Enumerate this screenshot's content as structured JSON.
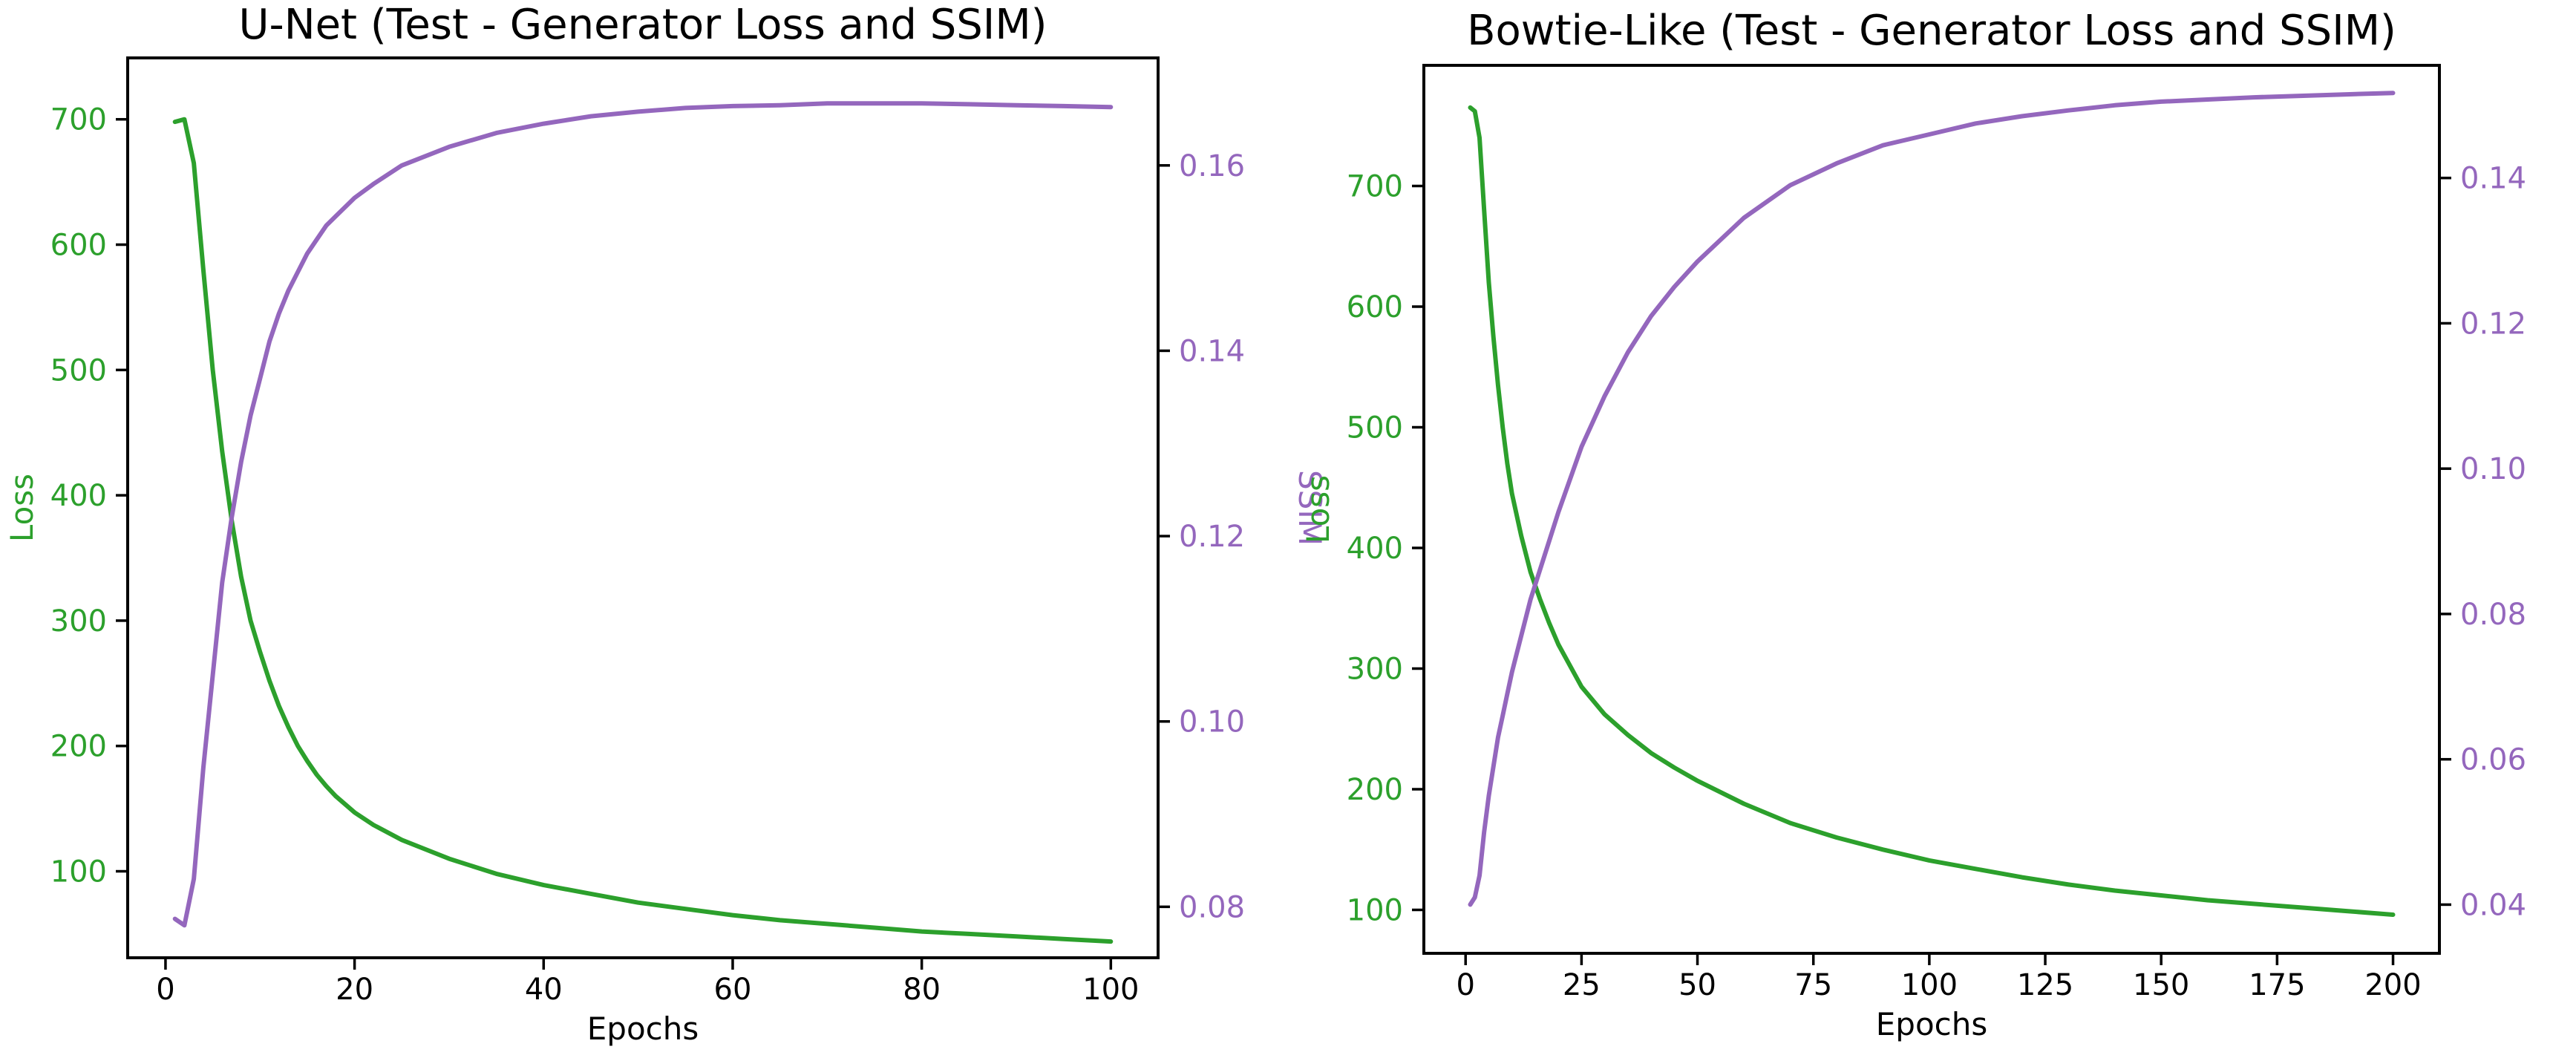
{
  "chart_data": [
    {
      "type": "line",
      "title": "U-Net (Test - Generator Loss and SSIM)",
      "xlabel": "Epochs",
      "ylabel": "Loss",
      "y2label": "SSIM",
      "xlim": [
        -4,
        105
      ],
      "ylim": [
        31,
        749
      ],
      "y2lim": [
        0.0745,
        0.1716
      ],
      "xticks": [
        0,
        20,
        40,
        60,
        80,
        100
      ],
      "yticks": [
        100,
        200,
        300,
        400,
        500,
        600,
        700
      ],
      "y2ticks": [
        0.08,
        0.1,
        0.12,
        0.14,
        0.16
      ],
      "y2tick_labels": [
        "0.08",
        "0.10",
        "0.12",
        "0.14",
        "0.16"
      ],
      "grid": false,
      "series": [
        {
          "axis": "left",
          "color": "#2ca02c",
          "x": [
            1,
            2,
            3,
            4,
            5,
            6,
            7,
            8,
            9,
            10,
            11,
            12,
            13,
            14,
            15,
            16,
            17,
            18,
            20,
            22,
            25,
            30,
            35,
            40,
            45,
            50,
            55,
            60,
            65,
            70,
            75,
            80,
            85,
            90,
            95,
            100
          ],
          "values": [
            698,
            700,
            665,
            580,
            500,
            435,
            380,
            335,
            300,
            275,
            252,
            232,
            215,
            200,
            188,
            177,
            168,
            160,
            147,
            137,
            125,
            110,
            98,
            89,
            82,
            75,
            70,
            65,
            61,
            58,
            55,
            52,
            50,
            48,
            46,
            44
          ]
        },
        {
          "axis": "right",
          "color": "#9467bd",
          "x": [
            1,
            2,
            3,
            4,
            5,
            6,
            7,
            8,
            9,
            10,
            11,
            12,
            13,
            14,
            15,
            16,
            17,
            18,
            20,
            22,
            25,
            30,
            35,
            40,
            45,
            50,
            55,
            60,
            65,
            70,
            75,
            80,
            85,
            90,
            95,
            100
          ],
          "values": [
            0.0787,
            0.078,
            0.083,
            0.095,
            0.105,
            0.115,
            0.122,
            0.128,
            0.133,
            0.137,
            0.141,
            0.144,
            0.1465,
            0.1485,
            0.1505,
            0.152,
            0.1535,
            0.1545,
            0.1565,
            0.158,
            0.16,
            0.162,
            0.1635,
            0.1645,
            0.1653,
            0.1658,
            0.1662,
            0.1664,
            0.1665,
            0.1667,
            0.1667,
            0.1667,
            0.1666,
            0.1665,
            0.1664,
            0.1663
          ]
        }
      ]
    },
    {
      "type": "line",
      "title": "Bowtie-Like (Test - Generator Loss and SSIM)",
      "xlabel": "Epochs",
      "ylabel": "Loss",
      "y2label": "SSIM",
      "xlim": [
        -9,
        210
      ],
      "ylim": [
        64,
        800
      ],
      "y2lim": [
        0.0333,
        0.1555
      ],
      "xticks": [
        0,
        25,
        50,
        75,
        100,
        125,
        150,
        175,
        200
      ],
      "yticks": [
        100,
        200,
        300,
        400,
        500,
        600,
        700
      ],
      "y2ticks": [
        0.04,
        0.06,
        0.08,
        0.1,
        0.12,
        0.14
      ],
      "y2tick_labels": [
        "0.04",
        "0.06",
        "0.08",
        "0.10",
        "0.12",
        "0.14"
      ],
      "grid": false,
      "series": [
        {
          "axis": "left",
          "color": "#2ca02c",
          "x": [
            1,
            2,
            3,
            4,
            5,
            6,
            7,
            8,
            9,
            10,
            12,
            14,
            16,
            18,
            20,
            25,
            30,
            35,
            40,
            45,
            50,
            60,
            70,
            80,
            90,
            100,
            110,
            120,
            130,
            140,
            150,
            160,
            170,
            180,
            190,
            200
          ],
          "values": [
            765,
            762,
            740,
            680,
            620,
            575,
            535,
            500,
            470,
            445,
            410,
            380,
            358,
            338,
            320,
            285,
            262,
            245,
            230,
            218,
            207,
            188,
            172,
            160,
            150,
            141,
            134,
            127,
            121,
            116,
            112,
            108,
            105,
            102,
            99,
            96
          ]
        },
        {
          "axis": "right",
          "color": "#9467bd",
          "x": [
            1,
            2,
            3,
            4,
            5,
            6,
            7,
            8,
            9,
            10,
            12,
            14,
            16,
            18,
            20,
            25,
            30,
            35,
            40,
            45,
            50,
            60,
            70,
            80,
            90,
            100,
            110,
            120,
            130,
            140,
            150,
            160,
            170,
            180,
            190,
            200
          ],
          "values": [
            0.04,
            0.041,
            0.044,
            0.05,
            0.055,
            0.059,
            0.063,
            0.066,
            0.069,
            0.072,
            0.077,
            0.082,
            0.086,
            0.09,
            0.094,
            0.103,
            0.11,
            0.116,
            0.121,
            0.125,
            0.1285,
            0.1345,
            0.139,
            0.142,
            0.1445,
            0.146,
            0.1475,
            0.1485,
            0.1493,
            0.15,
            0.1505,
            0.1508,
            0.1511,
            0.1513,
            0.1515,
            0.1517
          ]
        }
      ]
    }
  ]
}
